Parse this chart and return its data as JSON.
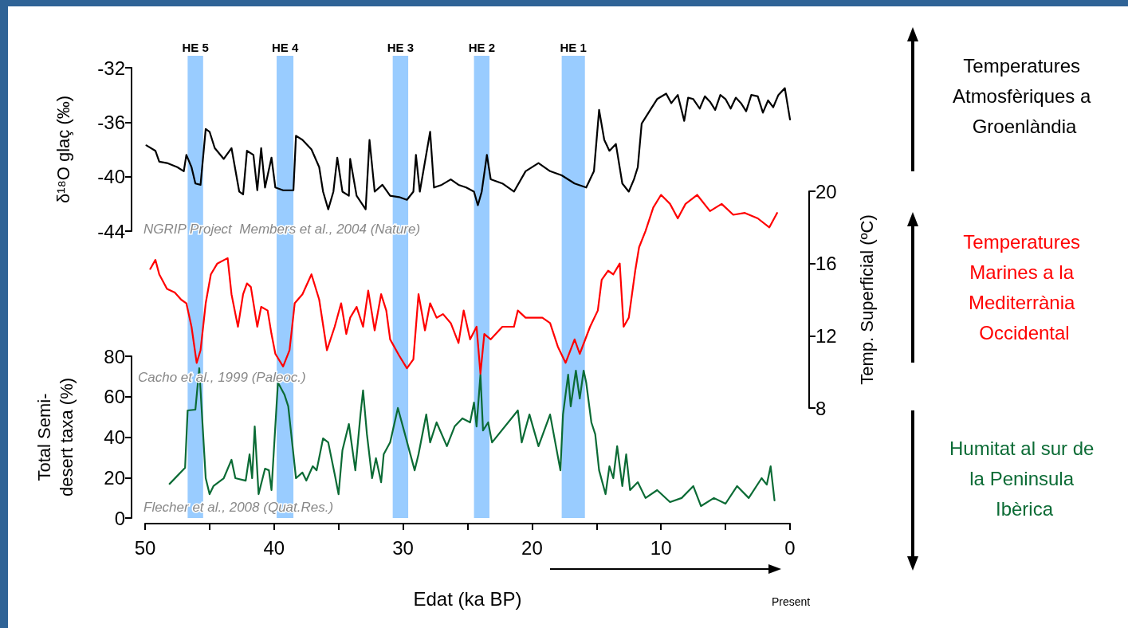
{
  "chart_data": [
    {
      "type": "line",
      "ylabel": "δ¹⁸O glaç (‰)",
      "xlim": [
        50,
        0
      ],
      "ylim": [
        -44,
        -32
      ],
      "yticks": [
        -44,
        -40,
        -36,
        -32
      ],
      "tick_labels": "y",
      "marker": "none",
      "line_style": "solid",
      "bands": [
        {
          "axis": "x",
          "from": 46.7,
          "to": 45.5,
          "label": "HE 5",
          "color": "#99ccff"
        },
        {
          "axis": "x",
          "from": 39.8,
          "to": 38.5,
          "label": "HE 4",
          "color": "#99ccff"
        },
        {
          "axis": "x",
          "from": 30.8,
          "to": 29.6,
          "label": "HE 3",
          "color": "#99ccff"
        },
        {
          "axis": "x",
          "from": 24.5,
          "to": 23.3,
          "label": "HE 2",
          "color": "#99ccff"
        },
        {
          "axis": "x",
          "from": 17.7,
          "to": 15.9,
          "label": "HE 1",
          "color": "#99ccff"
        }
      ],
      "annotations": [
        "NGRIP Project  Members et al., 2004 (Nature)"
      ],
      "series": [
        {
          "name": "Temperatures Atmosfèriques a Groenlàndia",
          "color": "#000000",
          "x": [
            49.9,
            49.2,
            48.9,
            48.3,
            47.5,
            47.0,
            46.8,
            46.4,
            46.1,
            45.7,
            45.3,
            45.0,
            44.6,
            43.9,
            43.3,
            42.7,
            42.4,
            42.1,
            41.6,
            41.3,
            41.0,
            40.7,
            40.2,
            39.9,
            39.3,
            38.5,
            38.3,
            37.8,
            37.1,
            36.5,
            36.2,
            35.8,
            35.4,
            35.1,
            34.7,
            34.2,
            34.1,
            33.6,
            32.9,
            32.6,
            32.2,
            31.6,
            31.0,
            30.3,
            29.7,
            29.2,
            29.0,
            28.7,
            27.9,
            27.6,
            27.0,
            26.3,
            25.7,
            25.1,
            24.5,
            24.2,
            23.9,
            23.5,
            23.2,
            22.3,
            21.4,
            20.5,
            19.5,
            18.6,
            17.7,
            16.7,
            15.8,
            15.2,
            14.8,
            14.4,
            14.0,
            13.5,
            13.0,
            12.5,
            12.1,
            11.8,
            11.5,
            10.9,
            10.3,
            9.6,
            9.2,
            8.7,
            8.2,
            7.9,
            7.5,
            7.0,
            6.6,
            6.2,
            5.8,
            5.4,
            5.0,
            4.6,
            4.2,
            3.8,
            3.4,
            3.0,
            2.5,
            2.1,
            1.7,
            1.3,
            0.9,
            0.4,
            0.0
          ],
          "values": [
            -37.7,
            -38.1,
            -38.9,
            -39.0,
            -39.3,
            -39.6,
            -38.4,
            -39.3,
            -40.5,
            -40.6,
            -36.5,
            -36.7,
            -37.9,
            -38.7,
            -37.9,
            -41.1,
            -41.3,
            -38.1,
            -38.4,
            -41.0,
            -37.9,
            -40.8,
            -38.6,
            -40.8,
            -41.0,
            -41.0,
            -37.0,
            -37.3,
            -38.0,
            -39.3,
            -41.1,
            -42.4,
            -41.1,
            -38.6,
            -41.1,
            -41.4,
            -38.7,
            -41.4,
            -42.4,
            -37.3,
            -41.1,
            -40.6,
            -41.4,
            -41.5,
            -41.7,
            -41.1,
            -38.4,
            -41.1,
            -36.7,
            -40.8,
            -40.6,
            -40.2,
            -40.6,
            -40.8,
            -41.1,
            -42.1,
            -41.1,
            -38.4,
            -40.2,
            -40.5,
            -41.1,
            -39.6,
            -39.0,
            -39.6,
            -39.9,
            -40.5,
            -40.8,
            -39.6,
            -35.1,
            -37.3,
            -38.1,
            -37.6,
            -40.5,
            -41.1,
            -40.2,
            -39.3,
            -36.1,
            -35.2,
            -34.3,
            -33.9,
            -34.6,
            -34.0,
            -35.9,
            -34.2,
            -34.3,
            -35.0,
            -34.1,
            -34.5,
            -35.1,
            -34.0,
            -34.3,
            -35.0,
            -34.2,
            -34.6,
            -35.2,
            -34.0,
            -34.1,
            -35.3,
            -34.4,
            -34.9,
            -34.0,
            -33.5,
            -35.8
          ]
        }
      ]
    },
    {
      "type": "line",
      "ylabel": "Temp. Superficial (ºC)",
      "xlim": [
        50,
        0
      ],
      "ylim": [
        8,
        20
      ],
      "yticks": [
        8,
        12,
        16,
        20
      ],
      "tick_labels": "y",
      "marker": "none",
      "line_style": "solid",
      "annotations": [
        "Cacho et al., 1999 (Paleoc.)"
      ],
      "series": [
        {
          "name": "Temperatures Marines a la Mediterrània Occidental",
          "color": "#ff0000",
          "x": [
            49.6,
            49.2,
            48.9,
            48.3,
            47.7,
            47.2,
            46.8,
            46.4,
            46.0,
            45.7,
            45.3,
            44.9,
            44.4,
            43.6,
            43.3,
            42.8,
            42.4,
            42.1,
            41.8,
            41.3,
            41.0,
            40.5,
            40.2,
            39.9,
            39.3,
            38.8,
            38.4,
            37.8,
            37.1,
            36.5,
            35.9,
            35.3,
            34.8,
            34.4,
            34.1,
            33.6,
            33.1,
            32.7,
            32.2,
            31.7,
            31.3,
            31.0,
            30.3,
            29.7,
            29.2,
            28.8,
            28.3,
            27.9,
            27.4,
            26.9,
            26.3,
            25.7,
            25.3,
            24.8,
            24.3,
            24.0,
            23.7,
            23.2,
            22.3,
            21.4,
            21.1,
            20.5,
            19.2,
            18.6,
            18.0,
            17.4,
            16.7,
            16.3,
            15.5,
            14.9,
            14.6,
            14.1,
            13.7,
            13.2,
            12.9,
            12.5,
            12.0,
            11.7,
            11.2,
            10.6,
            10.0,
            9.3,
            8.7,
            8.1,
            7.2,
            6.2,
            5.3,
            4.4,
            3.5,
            2.5,
            1.6,
            1.0
          ],
          "values": [
            15.7,
            16.2,
            15.4,
            14.6,
            14.4,
            14.0,
            13.8,
            12.5,
            10.5,
            11.2,
            13.8,
            15.4,
            16.0,
            16.3,
            14.3,
            12.5,
            14.3,
            14.9,
            14.7,
            12.5,
            13.6,
            13.4,
            12.1,
            11.0,
            10.3,
            11.2,
            13.8,
            14.3,
            15.4,
            14.0,
            11.2,
            12.5,
            13.8,
            12.1,
            13.0,
            13.6,
            12.5,
            14.5,
            12.3,
            14.3,
            13.4,
            11.8,
            10.9,
            10.2,
            10.7,
            14.3,
            12.3,
            13.8,
            13.0,
            13.2,
            12.7,
            11.6,
            13.4,
            11.8,
            12.5,
            9.9,
            12.1,
            11.8,
            12.5,
            12.5,
            13.4,
            13.0,
            13.0,
            12.7,
            11.4,
            10.5,
            11.8,
            11.0,
            12.5,
            13.4,
            15.1,
            15.6,
            15.4,
            16.0,
            12.5,
            13.0,
            15.6,
            16.9,
            17.8,
            19.1,
            19.8,
            19.3,
            18.5,
            19.3,
            19.8,
            18.9,
            19.3,
            18.7,
            18.8,
            18.5,
            18.0,
            18.8
          ]
        }
      ]
    },
    {
      "type": "line",
      "xlabel": "Edat (ka BP)",
      "ylabel": "Total Semi-\ndesert taxa (%)",
      "xlim": [
        50,
        0
      ],
      "xticks": [
        50,
        {
          "value": 45,
          "label": null
        },
        40,
        {
          "value": 35,
          "label": null
        },
        30,
        {
          "value": 25,
          "label": null
        },
        20,
        {
          "value": 15,
          "label": null
        },
        10,
        {
          "value": 5,
          "label": null
        },
        0
      ],
      "ylim": [
        0,
        80
      ],
      "yticks": [
        0,
        20,
        40,
        60,
        80
      ],
      "marker": "none",
      "line_style": "solid",
      "annotations": [
        "Flecher et al., 2008 (Quat.Res.)",
        "Present"
      ],
      "series": [
        {
          "name": "Humitat al sur de la Peninsula Ibèrica",
          "color": "#0b6b35",
          "x": [
            48.1,
            46.9,
            46.7,
            46.1,
            45.8,
            45.3,
            45.0,
            44.7,
            43.9,
            43.3,
            43.0,
            42.2,
            41.9,
            41.7,
            41.5,
            41.2,
            40.7,
            40.4,
            40.2,
            39.7,
            39.2,
            38.9,
            38.3,
            37.8,
            37.5,
            37.0,
            36.7,
            36.2,
            35.8,
            35.3,
            35.0,
            34.7,
            34.2,
            33.7,
            33.3,
            33.1,
            32.8,
            32.4,
            32.1,
            31.7,
            31.5,
            31.0,
            30.4,
            29.1,
            28.8,
            28.2,
            27.9,
            27.4,
            26.6,
            26.0,
            25.4,
            24.8,
            24.5,
            24.3,
            24.0,
            23.8,
            23.4,
            23.1,
            21.1,
            20.8,
            20.2,
            19.5,
            18.6,
            17.8,
            17.6,
            17.2,
            17.0,
            16.6,
            16.3,
            16.0,
            15.8,
            15.4,
            15.1,
            14.8,
            14.3,
            14.0,
            13.7,
            13.4,
            13.0,
            12.7,
            12.4,
            11.8,
            11.2,
            10.3,
            9.3,
            8.4,
            7.5,
            6.9,
            5.9,
            5.0,
            4.1,
            3.2,
            2.2,
            1.8,
            1.5,
            1.2
          ],
          "values": [
            16.9,
            24.8,
            53.2,
            53.6,
            74.1,
            19.7,
            11.8,
            15.8,
            19.7,
            28.8,
            19.7,
            18.5,
            31.5,
            19.7,
            45.3,
            11.8,
            24.4,
            23.6,
            13.8,
            67.0,
            61.1,
            55.2,
            19.7,
            22.5,
            18.5,
            25.6,
            23.6,
            39.4,
            37.4,
            21.7,
            11.8,
            33.5,
            46.5,
            23.6,
            51.2,
            63.1,
            41.4,
            19.7,
            29.6,
            17.7,
            31.5,
            37.4,
            54.4,
            23.6,
            31.5,
            51.2,
            37.4,
            47.3,
            35.5,
            45.3,
            49.3,
            47.3,
            57.1,
            45.3,
            70.9,
            43.3,
            47.3,
            37.4,
            53.2,
            37.4,
            51.2,
            35.5,
            51.2,
            23.6,
            51.2,
            70.9,
            55.2,
            72.9,
            59.1,
            72.9,
            67.0,
            47.3,
            41.4,
            23.6,
            11.8,
            25.6,
            19.7,
            35.5,
            15.8,
            31.5,
            13.8,
            17.7,
            9.9,
            13.8,
            7.9,
            9.9,
            15.8,
            5.9,
            9.9,
            7.1,
            15.8,
            9.9,
            19.7,
            16.5,
            25.6,
            8.7
          ]
        }
      ]
    }
  ]
}
